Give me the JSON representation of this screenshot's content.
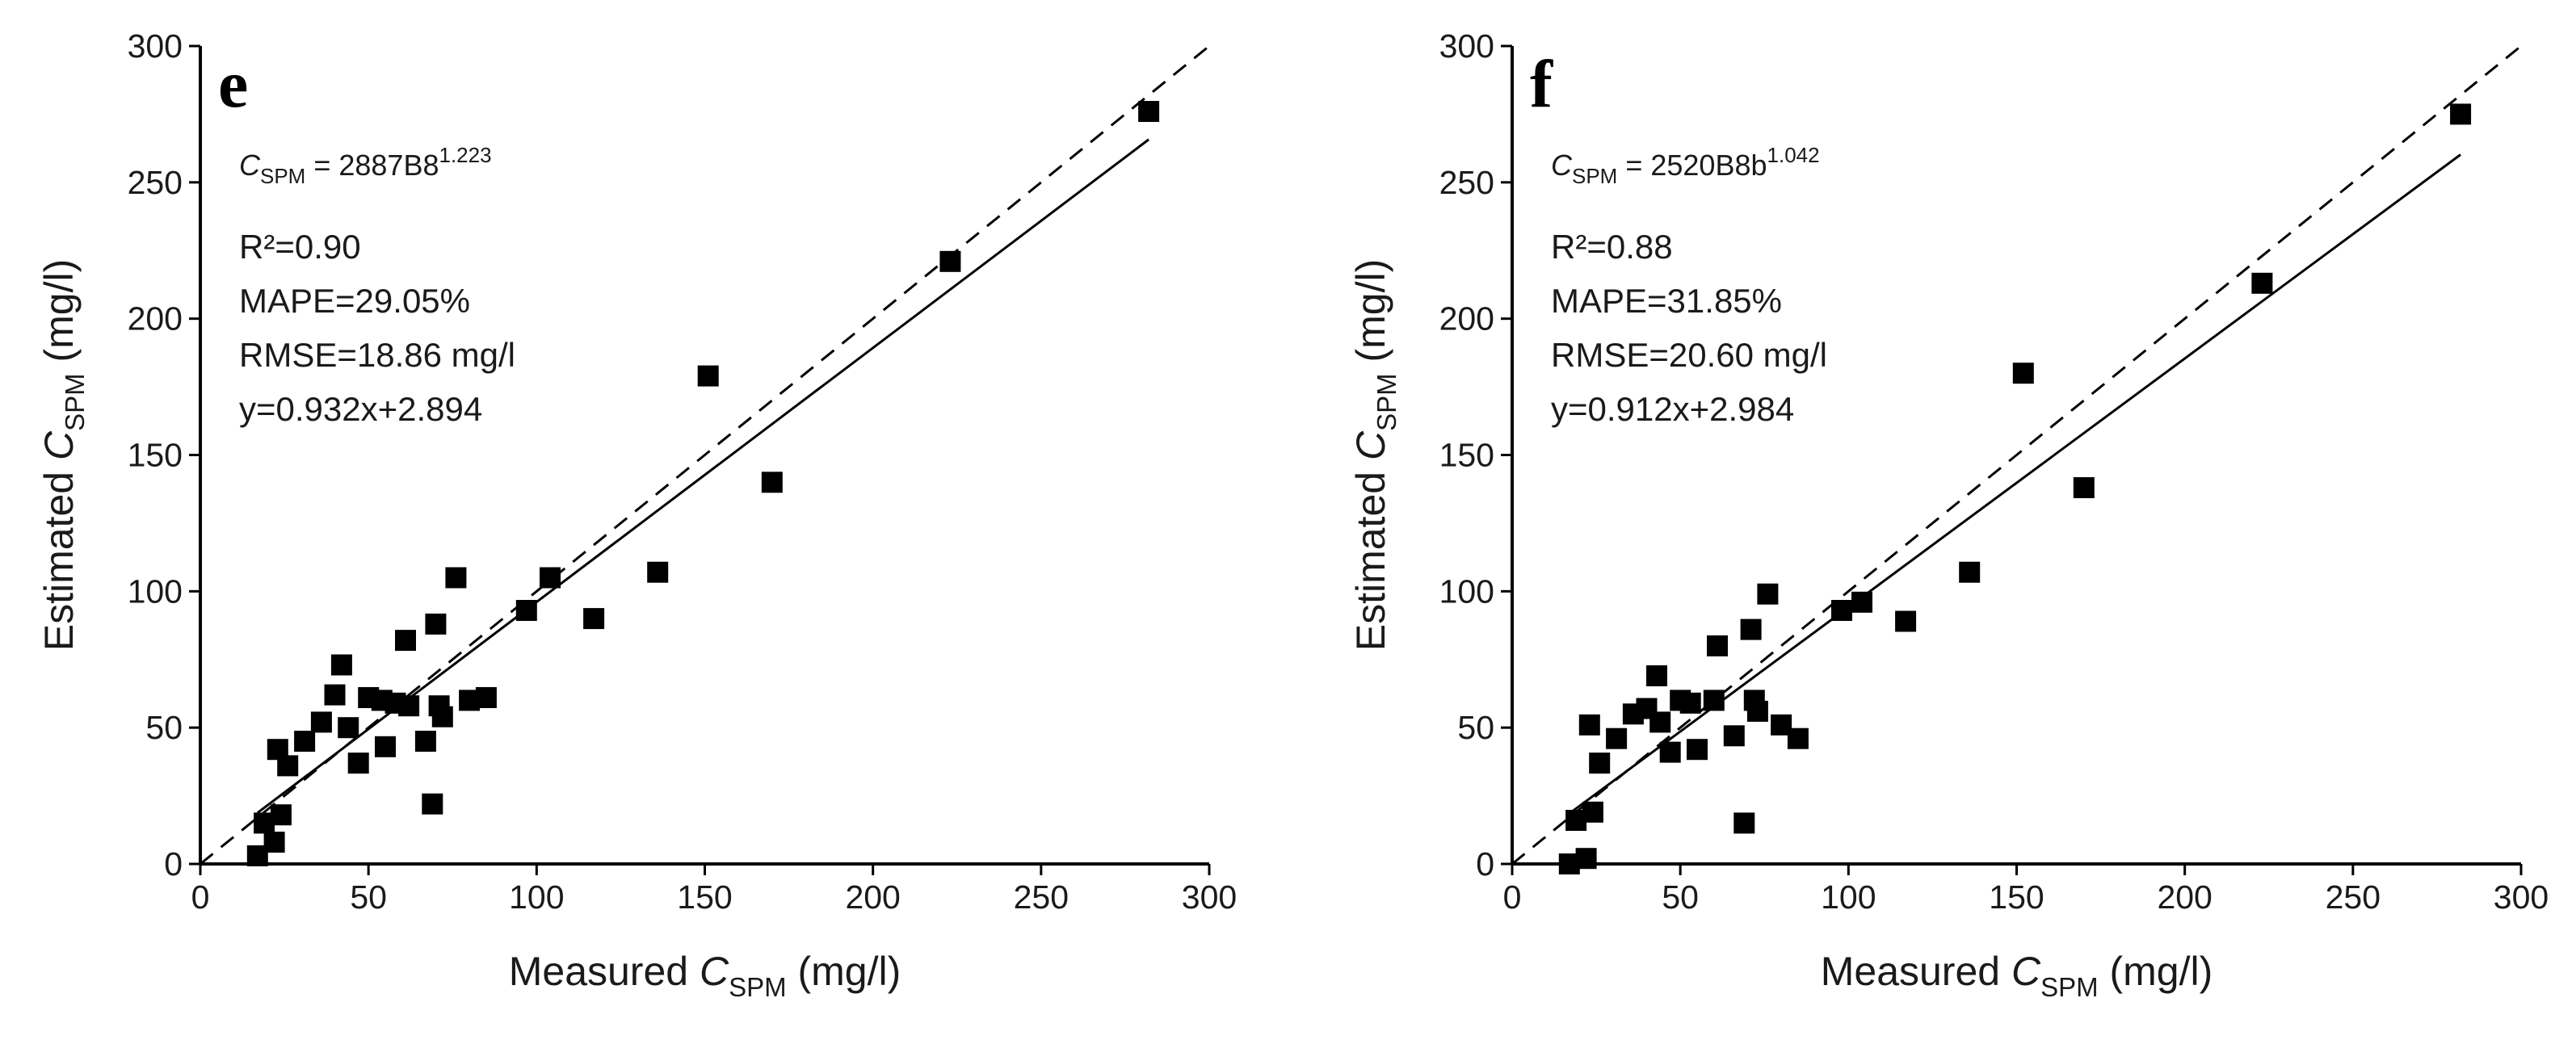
{
  "chart_data": [
    {
      "type": "scatter",
      "panel_letter": "e",
      "xlim": [
        0,
        300
      ],
      "ylim": [
        0,
        300
      ],
      "xticks": [
        0,
        50,
        100,
        150,
        200,
        250,
        300
      ],
      "yticks": [
        0,
        50,
        100,
        150,
        200,
        250,
        300
      ],
      "xlabel": {
        "prefix": "Measured ",
        "var": "C",
        "sub": "SPM",
        "suffix": " (mg/l)"
      },
      "ylabel": {
        "prefix": "Estimated ",
        "var": "C",
        "sub": "SPM",
        "suffix": " (mg/l)"
      },
      "equation": {
        "var": "C",
        "sub": "SPM",
        "rest": " = 2887B8",
        "exp": "1.223"
      },
      "stats": [
        "R²=0.90",
        "MAPE=29.05%",
        "RMSE=18.86 mg/l",
        "y=0.932x+2.894"
      ],
      "fit_line": {
        "slope": 0.932,
        "intercept": 2.894,
        "x_range": [
          17,
          282
        ]
      },
      "reference_line": "1:1",
      "points": [
        [
          17,
          3
        ],
        [
          19,
          15
        ],
        [
          22,
          8
        ],
        [
          23,
          42
        ],
        [
          24,
          18
        ],
        [
          26,
          36
        ],
        [
          31,
          45
        ],
        [
          36,
          52
        ],
        [
          40,
          62
        ],
        [
          42,
          73
        ],
        [
          44,
          50
        ],
        [
          47,
          37
        ],
        [
          50,
          61
        ],
        [
          54,
          60
        ],
        [
          55,
          43
        ],
        [
          58,
          59
        ],
        [
          61,
          82
        ],
        [
          62,
          58
        ],
        [
          67,
          45
        ],
        [
          69,
          22
        ],
        [
          70,
          88
        ],
        [
          71,
          58
        ],
        [
          72,
          54
        ],
        [
          76,
          105
        ],
        [
          80,
          60
        ],
        [
          85,
          61
        ],
        [
          97,
          93
        ],
        [
          104,
          105
        ],
        [
          117,
          90
        ],
        [
          136,
          107
        ],
        [
          151,
          179
        ],
        [
          170,
          140
        ],
        [
          223,
          221
        ],
        [
          282,
          276
        ]
      ]
    },
    {
      "type": "scatter",
      "panel_letter": "f",
      "xlim": [
        0,
        300
      ],
      "ylim": [
        0,
        300
      ],
      "xticks": [
        0,
        50,
        100,
        150,
        200,
        250,
        300
      ],
      "yticks": [
        0,
        50,
        100,
        150,
        200,
        250,
        300
      ],
      "xlabel": {
        "prefix": "Measured ",
        "var": "C",
        "sub": "SPM",
        "suffix": " (mg/l)"
      },
      "ylabel": {
        "prefix": "Estimated ",
        "var": "C",
        "sub": "SPM",
        "suffix": " (mg/l)"
      },
      "equation": {
        "var": "C",
        "sub": "SPM",
        "rest": " = 2520B8b",
        "exp": "1.042"
      },
      "stats": [
        "R²=0.88",
        "MAPE=31.85%",
        "RMSE=20.60 mg/l",
        "y=0.912x+2.984"
      ],
      "fit_line": {
        "slope": 0.912,
        "intercept": 2.984,
        "x_range": [
          17,
          282
        ]
      },
      "reference_line": "1:1",
      "points": [
        [
          17,
          0
        ],
        [
          19,
          16
        ],
        [
          22,
          2
        ],
        [
          23,
          51
        ],
        [
          24,
          19
        ],
        [
          26,
          37
        ],
        [
          31,
          46
        ],
        [
          36,
          55
        ],
        [
          40,
          57
        ],
        [
          43,
          69
        ],
        [
          44,
          52
        ],
        [
          47,
          41
        ],
        [
          50,
          60
        ],
        [
          53,
          59
        ],
        [
          55,
          42
        ],
        [
          60,
          60
        ],
        [
          61,
          80
        ],
        [
          66,
          47
        ],
        [
          69,
          15
        ],
        [
          71,
          86
        ],
        [
          72,
          60
        ],
        [
          73,
          56
        ],
        [
          76,
          99
        ],
        [
          80,
          51
        ],
        [
          85,
          46
        ],
        [
          98,
          93
        ],
        [
          104,
          96
        ],
        [
          117,
          89
        ],
        [
          136,
          107
        ],
        [
          152,
          180
        ],
        [
          170,
          138
        ],
        [
          223,
          213
        ],
        [
          282,
          275
        ]
      ]
    }
  ]
}
